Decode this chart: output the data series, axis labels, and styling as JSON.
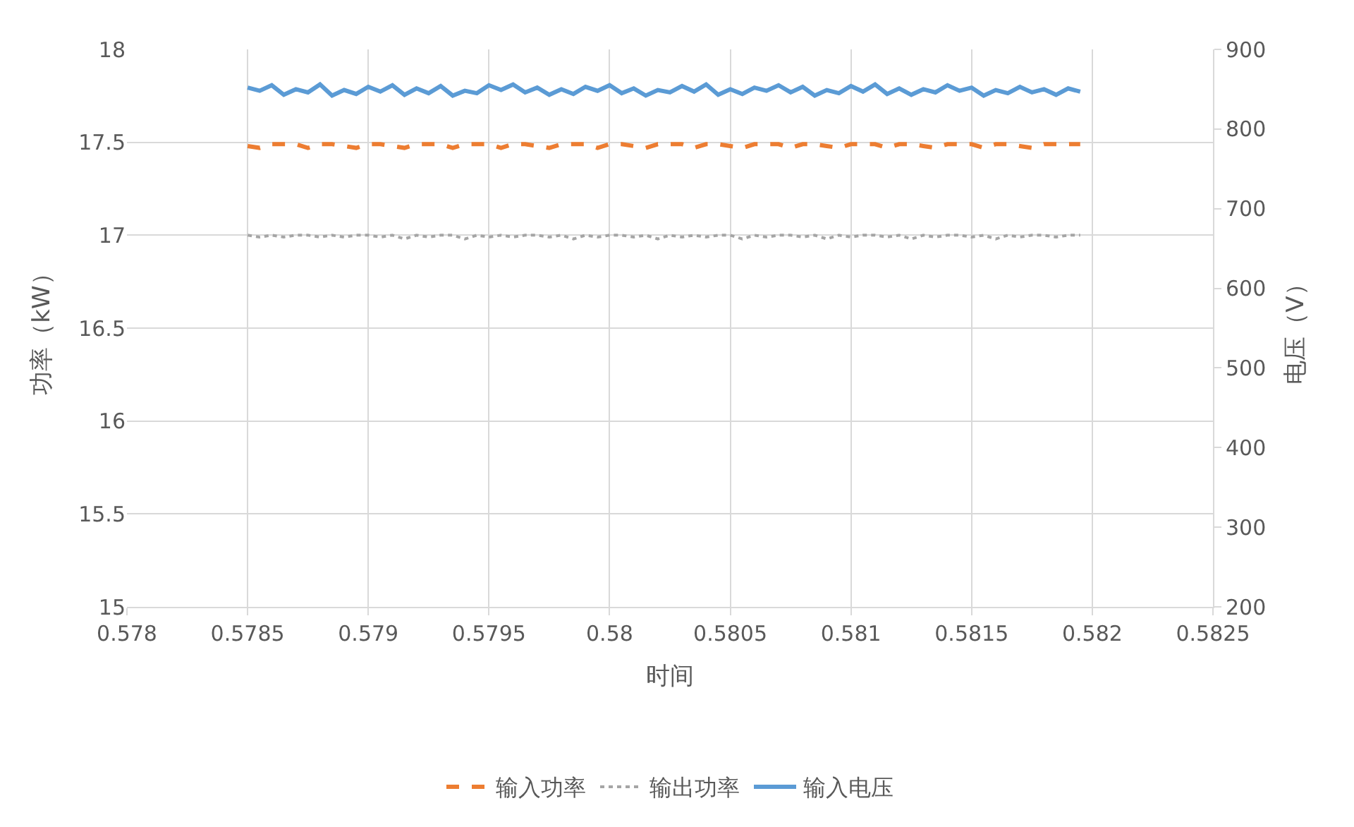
{
  "chart_data": {
    "type": "line",
    "xlabel": "时间",
    "ylabel": "功率（kW）",
    "y2label": "电压（V）",
    "x": [
      0.5785,
      0.57855,
      0.5786,
      0.57865,
      0.5787,
      0.57875,
      0.5788,
      0.57885,
      0.5789,
      0.57895,
      0.579,
      0.57905,
      0.5791,
      0.57915,
      0.5792,
      0.57925,
      0.5793,
      0.57935,
      0.5794,
      0.57945,
      0.5795,
      0.57955,
      0.5796,
      0.57965,
      0.5797,
      0.57975,
      0.5798,
      0.57985,
      0.5799,
      0.57995,
      0.58,
      0.58005,
      0.5801,
      0.58015,
      0.5802,
      0.58025,
      0.5803,
      0.58035,
      0.5804,
      0.58045,
      0.5805,
      0.58055,
      0.5806,
      0.58065,
      0.5807,
      0.58075,
      0.5808,
      0.58085,
      0.5809,
      0.58095,
      0.581,
      0.58105,
      0.5811,
      0.58115,
      0.5812,
      0.58125,
      0.5813,
      0.58135,
      0.5814,
      0.58145,
      0.5815,
      0.58155,
      0.5816,
      0.58165,
      0.5817,
      0.58175,
      0.5818,
      0.58185,
      0.5819,
      0.58195
    ],
    "series": [
      {
        "name": "输入功率",
        "color": "#ed7d31",
        "line_style": "dashed",
        "values": [
          17.48,
          17.47,
          17.49,
          17.49,
          17.49,
          17.47,
          17.49,
          17.49,
          17.48,
          17.47,
          17.49,
          17.49,
          17.48,
          17.47,
          17.49,
          17.49,
          17.49,
          17.47,
          17.49,
          17.49,
          17.49,
          17.47,
          17.49,
          17.49,
          17.48,
          17.47,
          17.49,
          17.49,
          17.49,
          17.47,
          17.49,
          17.49,
          17.48,
          17.47,
          17.49,
          17.49,
          17.49,
          17.47,
          17.49,
          17.49,
          17.48,
          17.47,
          17.49,
          17.49,
          17.49,
          17.47,
          17.49,
          17.49,
          17.48,
          17.47,
          17.49,
          17.49,
          17.49,
          17.47,
          17.49,
          17.49,
          17.48,
          17.47,
          17.49,
          17.49,
          17.49,
          17.47,
          17.49,
          17.49,
          17.48,
          17.47,
          17.49,
          17.49,
          17.49,
          17.49
        ]
      },
      {
        "name": "输出功率",
        "color": "#a5a5a5",
        "line_style": "dotted",
        "values": [
          17.0,
          16.99,
          17.0,
          16.99,
          17.0,
          17.0,
          16.99,
          17.0,
          16.99,
          17.0,
          17.0,
          16.99,
          17.0,
          16.98,
          17.0,
          16.99,
          17.0,
          17.0,
          16.98,
          17.0,
          16.99,
          17.0,
          16.99,
          17.0,
          17.0,
          16.99,
          17.0,
          16.98,
          17.0,
          16.99,
          17.0,
          17.0,
          16.99,
          17.0,
          16.98,
          17.0,
          16.99,
          17.0,
          16.99,
          17.0,
          17.0,
          16.98,
          17.0,
          16.99,
          17.0,
          17.0,
          16.99,
          17.0,
          16.98,
          17.0,
          16.99,
          17.0,
          17.0,
          16.99,
          17.0,
          16.98,
          17.0,
          16.99,
          17.0,
          17.0,
          16.99,
          17.0,
          16.98,
          17.0,
          16.99,
          17.0,
          17.0,
          16.99,
          17.0,
          17.0
        ]
      },
      {
        "name": "输入电压",
        "color": "#5b9bd5",
        "line_style": "solid",
        "axis": "y2",
        "values": [
          852,
          848,
          855,
          843,
          850,
          846,
          856,
          842,
          849,
          844,
          853,
          847,
          855,
          843,
          851,
          845,
          854,
          842,
          848,
          845,
          855,
          849,
          856,
          846,
          852,
          843,
          850,
          844,
          853,
          848,
          855,
          845,
          851,
          842,
          849,
          846,
          854,
          847,
          856,
          843,
          850,
          844,
          852,
          848,
          855,
          846,
          853,
          842,
          849,
          845,
          854,
          847,
          856,
          844,
          851,
          843,
          850,
          846,
          855,
          848,
          852,
          842,
          849,
          845,
          853,
          846,
          850,
          843,
          851,
          847
        ]
      }
    ],
    "xlim": [
      0.578,
      0.5825
    ],
    "xticks": [
      0.578,
      0.5785,
      0.579,
      0.5795,
      0.58,
      0.5805,
      0.581,
      0.5815,
      0.582,
      0.5825
    ],
    "ylim": [
      15,
      18
    ],
    "yticks": [
      15,
      15.5,
      16,
      16.5,
      17,
      17.5,
      18
    ],
    "y2lim": [
      200,
      900
    ],
    "y2ticks": [
      200,
      300,
      400,
      500,
      600,
      700,
      800,
      900
    ],
    "grid": true,
    "legend": "bottom"
  }
}
